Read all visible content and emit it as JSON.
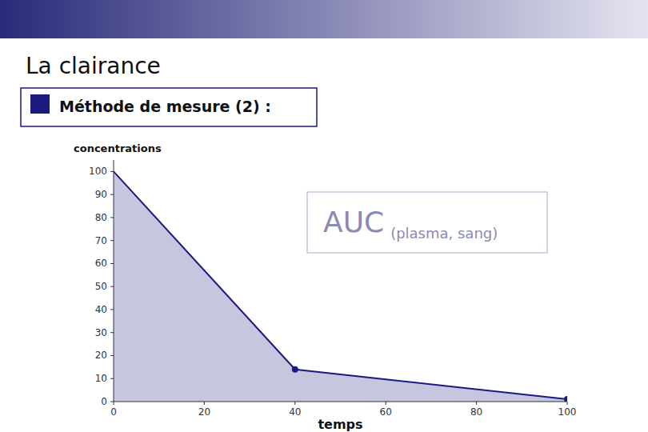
{
  "chart_data": {
    "type": "area",
    "title": "La clairance",
    "subtitle": "Méthode de mesure (2) :",
    "ylabel": "concentrations",
    "xlabel": "temps",
    "annotations": [
      "AUC",
      "(plasma, sang)"
    ],
    "xlim": [
      0,
      100
    ],
    "ylim": [
      0,
      105
    ],
    "xticks": [
      0,
      20,
      40,
      60,
      80,
      100
    ],
    "yticks": [
      0,
      10,
      20,
      30,
      40,
      50,
      60,
      70,
      80,
      90,
      100
    ],
    "series": [
      {
        "type": "area",
        "color": "#1A1A80",
        "x": [
          0,
          40,
          100
        ],
        "values": [
          100,
          14,
          1
        ]
      },
      {
        "type": "scatter",
        "color": "#1A1A80",
        "marker": "circle",
        "x": [
          40,
          100
        ],
        "values": [
          14,
          1
        ]
      }
    ]
  }
}
